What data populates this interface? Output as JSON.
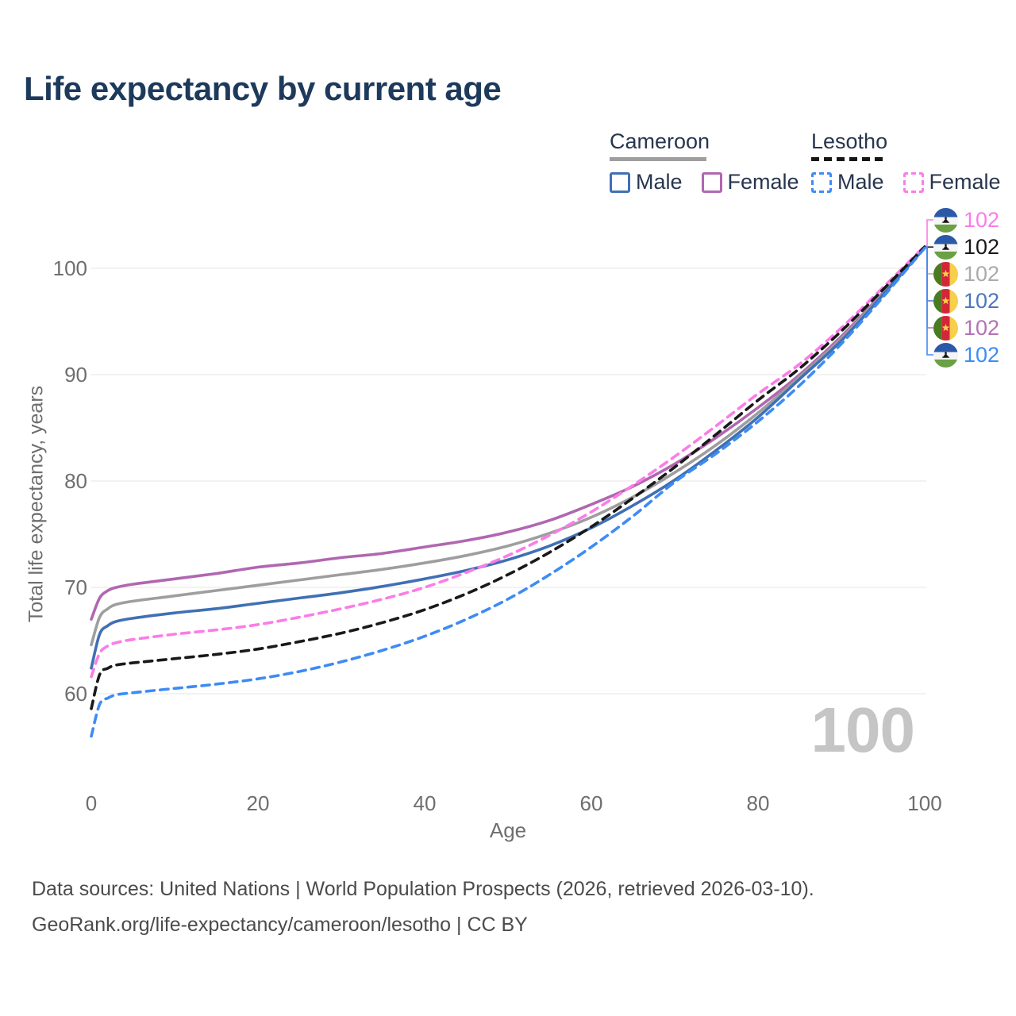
{
  "page": {
    "title": "Life expectancy by current age"
  },
  "legend": {
    "groups": [
      {
        "name": "Cameroon",
        "line_style": "solid",
        "underline_color": "#9e9e9e",
        "items": [
          {
            "label": "Male",
            "color": "#4070b4",
            "dashed": false
          },
          {
            "label": "Female",
            "color": "#b067b0",
            "dashed": false
          }
        ]
      },
      {
        "name": "Lesotho",
        "line_style": "dashed",
        "underline_color": "#161616",
        "items": [
          {
            "label": "Male",
            "color": "#3d8bf5",
            "dashed": true
          },
          {
            "label": "Female",
            "color": "#fb7ce8",
            "dashed": true
          }
        ]
      }
    ]
  },
  "watermark": "100",
  "footer": {
    "line1": "Data sources: United Nations | World Population Prospects (2026, retrieved 2026-03-10).",
    "line2": "GeoRank.org/life-expectancy/cameroon/lesotho | CC BY"
  },
  "chart_data": {
    "type": "line",
    "title": "Life expectancy by current age",
    "xlabel": "Age",
    "ylabel": "Total life expectancy, years",
    "xlim": [
      0,
      100
    ],
    "ylim": [
      54,
      104
    ],
    "xticks": [
      0,
      20,
      40,
      60,
      80,
      100
    ],
    "yticks": [
      100,
      90,
      80,
      70,
      60
    ],
    "grid": "horizontal",
    "legend_position": "top-right",
    "ages": [
      0,
      1,
      2,
      3,
      5,
      10,
      15,
      20,
      25,
      30,
      35,
      40,
      45,
      50,
      55,
      60,
      65,
      70,
      75,
      80,
      85,
      90,
      95,
      100
    ],
    "series": [
      {
        "name": "Cameroon Female",
        "country": "Cameroon",
        "sex": "Female",
        "color": "#b067b0",
        "dashed": false,
        "values": [
          67.0,
          69.0,
          69.7,
          70.0,
          70.3,
          70.8,
          71.3,
          71.9,
          72.3,
          72.8,
          73.2,
          73.8,
          74.4,
          75.2,
          76.3,
          77.8,
          79.5,
          81.6,
          84.1,
          86.9,
          90.0,
          93.6,
          97.7,
          101.93
        ]
      },
      {
        "name": "Cameroon Total",
        "country": "Cameroon",
        "sex": "Both",
        "color": "#9e9e9e",
        "dashed": false,
        "values": [
          64.6,
          67.2,
          68.0,
          68.4,
          68.7,
          69.2,
          69.7,
          70.2,
          70.7,
          71.2,
          71.7,
          72.3,
          73.0,
          73.9,
          75.1,
          76.6,
          78.5,
          80.8,
          83.4,
          86.4,
          89.8,
          93.4,
          97.6,
          101.98
        ]
      },
      {
        "name": "Cameroon Male",
        "country": "Cameroon",
        "sex": "Male",
        "color": "#4070b4",
        "dashed": false,
        "values": [
          62.4,
          65.6,
          66.4,
          66.8,
          67.1,
          67.6,
          68.0,
          68.5,
          69.0,
          69.5,
          70.1,
          70.8,
          71.6,
          72.6,
          73.9,
          75.6,
          77.7,
          80.1,
          82.9,
          86.0,
          89.6,
          93.2,
          97.5,
          101.95
        ]
      },
      {
        "name": "Lesotho Female",
        "country": "Lesotho",
        "sex": "Female",
        "color": "#fb7ce8",
        "dashed": true,
        "values": [
          61.6,
          63.8,
          64.5,
          64.8,
          65.1,
          65.6,
          66.0,
          66.5,
          67.2,
          68.0,
          68.9,
          70.0,
          71.4,
          73.0,
          74.9,
          77.1,
          79.6,
          82.3,
          85.2,
          88.2,
          91.0,
          94.4,
          98.2,
          102.1
        ]
      },
      {
        "name": "Lesotho Total",
        "country": "Lesotho",
        "sex": "Both",
        "color": "#191919",
        "dashed": true,
        "values": [
          58.6,
          61.8,
          62.4,
          62.7,
          62.9,
          63.3,
          63.7,
          64.2,
          64.9,
          65.7,
          66.7,
          67.9,
          69.4,
          71.2,
          73.3,
          75.7,
          78.4,
          81.3,
          84.4,
          87.6,
          90.6,
          94.1,
          98.0,
          102.02
        ]
      },
      {
        "name": "Lesotho Male",
        "country": "Lesotho",
        "sex": "Male",
        "color": "#3d8bf5",
        "dashed": true,
        "values": [
          56.0,
          59.0,
          59.6,
          59.9,
          60.1,
          60.5,
          60.9,
          61.4,
          62.1,
          63.0,
          64.1,
          65.4,
          67.0,
          68.9,
          71.2,
          73.8,
          76.7,
          79.9,
          82.6,
          85.6,
          89.0,
          92.9,
          97.3,
          101.9
        ]
      }
    ],
    "end_labels": [
      {
        "series": "Lesotho Female",
        "flag": "lesotho",
        "label": "102",
        "color": "#fb7ce8"
      },
      {
        "series": "Lesotho Total",
        "flag": "lesotho",
        "label": "102",
        "color": "#191919"
      },
      {
        "series": "Cameroon Total",
        "flag": "cameroon",
        "label": "102",
        "color": "#ababab"
      },
      {
        "series": "Cameroon Male",
        "flag": "cameroon",
        "label": "102",
        "color": "#4b76c0"
      },
      {
        "series": "Cameroon Female",
        "flag": "cameroon",
        "label": "102",
        "color": "#b472b4"
      },
      {
        "series": "Lesotho Male",
        "flag": "lesotho",
        "label": "102",
        "color": "#3d8bf5"
      }
    ]
  }
}
